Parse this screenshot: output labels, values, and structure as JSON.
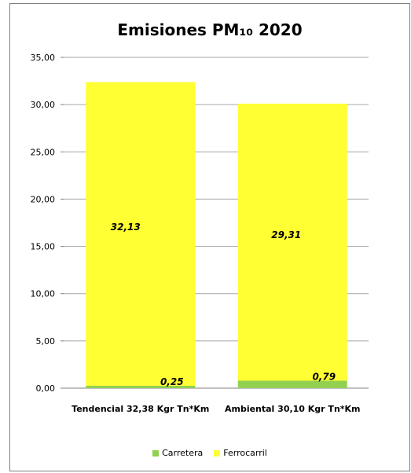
{
  "chart_data": {
    "type": "bar",
    "stacked": true,
    "title": "Emisiones PM₁₀ 2020",
    "categories": [
      "Tendencial 32,38 Kgr Tn*Km",
      "Ambiental 30,10 Kgr Tn*Km"
    ],
    "series": [
      {
        "name": "Carretera",
        "values": [
          0.25,
          0.79
        ],
        "labels": [
          "0,25",
          "0,79"
        ],
        "color": "#92d050"
      },
      {
        "name": "Ferrocarril",
        "values": [
          32.13,
          29.31
        ],
        "labels": [
          "32,13",
          "29,31"
        ],
        "color": "#ffff33"
      }
    ],
    "ylim": [
      0,
      35
    ],
    "yticks": [
      0,
      5,
      10,
      15,
      20,
      25,
      30,
      35
    ],
    "ytick_labels": [
      "0,00",
      "5,00",
      "10,00",
      "15,00",
      "20,00",
      "25,00",
      "30,00",
      "35,00"
    ],
    "grid": true,
    "legend": "bottom"
  }
}
